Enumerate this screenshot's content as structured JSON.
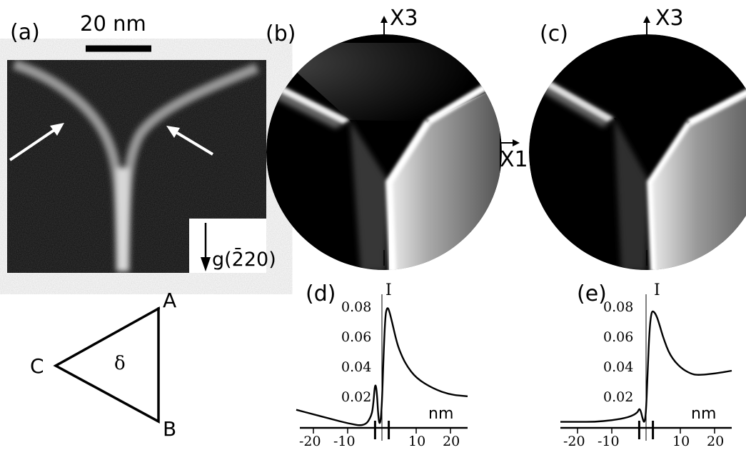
{
  "panels": {
    "a": {
      "label": "(a)",
      "scale_bar": "20 nm",
      "g_vector": "g(2̄20)"
    },
    "b": {
      "label": "(b)",
      "axis_x3": "X3",
      "axis_x1": "X1"
    },
    "c": {
      "label": "(c)",
      "axis_x3": "X3"
    },
    "d": {
      "label": "(d)",
      "marker": "I"
    },
    "e": {
      "label": "(e)",
      "marker": "I"
    }
  },
  "triangle": {
    "vertices": [
      "A",
      "B",
      "C"
    ],
    "center": "δ"
  },
  "chart_data": [
    {
      "type": "line",
      "title": "(d)",
      "xlabel": "nm",
      "ylabel": "",
      "xlim": [
        -25,
        25
      ],
      "ylim": [
        0,
        0.085
      ],
      "x_ticks": [
        "-20",
        "-10",
        "10",
        "20"
      ],
      "y_ticks": [
        "0.02",
        "0.04",
        "0.06",
        "0.08"
      ],
      "series": [
        {
          "x": [
            -25,
            -20,
            -15,
            -10,
            -5,
            -3,
            -2.5,
            -2,
            -1.5,
            -1,
            -0.5,
            0,
            0.5,
            1,
            1.5,
            2,
            3,
            4,
            5,
            7,
            10,
            15,
            20,
            25
          ],
          "y": [
            0.012,
            0.009,
            0.006,
            0.003,
            0.001,
            0.008,
            0.016,
            0.03,
            0.025,
            0.005,
            0.002,
            0.015,
            0.05,
            0.075,
            0.08,
            0.079,
            0.07,
            0.06,
            0.052,
            0.042,
            0.033,
            0.026,
            0.022,
            0.021
          ]
        }
      ]
    },
    {
      "type": "line",
      "title": "(e)",
      "xlabel": "nm",
      "ylabel": "",
      "xlim": [
        -25,
        25
      ],
      "ylim": [
        0,
        0.085
      ],
      "x_ticks": [
        "-20",
        "-10",
        "10",
        "20"
      ],
      "y_ticks": [
        "0.02",
        "0.04",
        "0.06",
        "0.08"
      ],
      "series": [
        {
          "x": [
            -25,
            -20,
            -15,
            -10,
            -5,
            -2.5,
            -2,
            -1.5,
            -1,
            -0.5,
            0,
            0.5,
            1,
            1.5,
            2,
            3,
            4,
            5,
            7,
            10,
            13,
            15,
            20,
            25
          ],
          "y": [
            0.004,
            0.004,
            0.004,
            0.005,
            0.007,
            0.01,
            0.013,
            0.011,
            0.006,
            0.003,
            0.01,
            0.04,
            0.065,
            0.076,
            0.078,
            0.075,
            0.068,
            0.06,
            0.048,
            0.04,
            0.036,
            0.035,
            0.036,
            0.038
          ]
        }
      ]
    }
  ]
}
